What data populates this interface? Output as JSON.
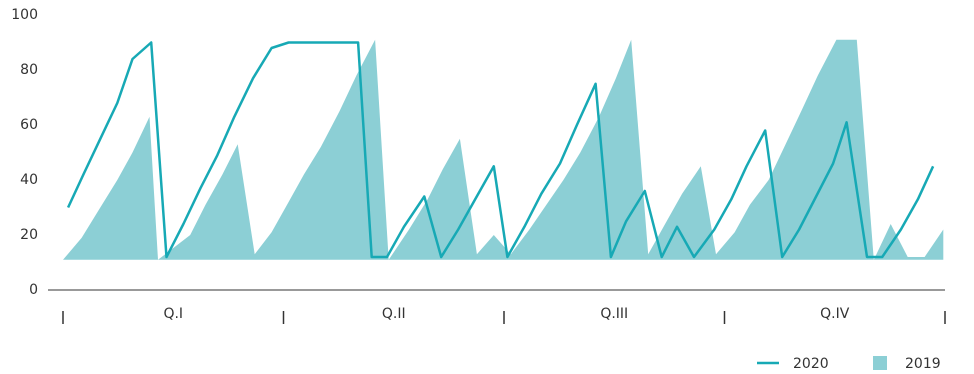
{
  "chart_data": {
    "type": "line-area",
    "quarters": [
      "Q.I",
      "Q.II",
      "Q.III",
      "Q.IV"
    ],
    "xlim": [
      0,
      52
    ],
    "xticks": [
      0,
      13,
      26,
      39,
      52
    ],
    "ylim": [
      0,
      100
    ],
    "yticks": [
      0,
      20,
      40,
      60,
      80,
      100
    ],
    "series": [
      {
        "name": "2020",
        "kind": "line",
        "color": "#17a9b5",
        "x": [
          0.3,
          1.2,
          2.2,
          3.2,
          4.1,
          5.2,
          6.1,
          7.1,
          8.1,
          9.1,
          10.1,
          11.2,
          12.3,
          13.3,
          17.4,
          18.2,
          19.1,
          20.1,
          21.3,
          22.3,
          23.3,
          24.3,
          25.4,
          26.2,
          27.2,
          28.2,
          29.3,
          30.3,
          31.4,
          32.3,
          33.2,
          34.3,
          35.3,
          36.2,
          37.2,
          38.4,
          39.4,
          40.3,
          41.4,
          42.4,
          43.4,
          44.4,
          45.4,
          46.2,
          47.4,
          48.3,
          49.4,
          50.4,
          51.3
        ],
        "values": [
          30,
          42,
          55,
          68,
          84,
          90,
          12,
          24,
          37,
          49,
          63,
          77,
          88,
          90,
          90,
          12,
          12,
          23,
          34,
          12,
          22,
          33,
          45,
          12,
          23,
          35,
          46,
          60,
          75,
          12,
          25,
          36,
          12,
          23,
          12,
          22,
          33,
          45,
          58,
          12,
          22,
          34,
          46,
          61,
          12,
          12,
          22,
          33,
          45
        ]
      },
      {
        "name": "2019",
        "kind": "area",
        "color": "#8ccfd5",
        "x": [
          0,
          1.1,
          2.2,
          3.2,
          4.1,
          5.1,
          5.6,
          7.5,
          8.4,
          9.4,
          10.3,
          11.3,
          12.3,
          13.3,
          14.2,
          15.2,
          16.3,
          17.3,
          18.4,
          19.2,
          20.4,
          21.5,
          22.4,
          23.4,
          24.4,
          25.4,
          26.4,
          27.5,
          28.5,
          29.5,
          30.5,
          31.6,
          32.6,
          33.5,
          34.5,
          35.5,
          36.5,
          37.6,
          38.5,
          39.6,
          40.5,
          41.6,
          42.6,
          43.6,
          44.5,
          45.6,
          46.8,
          47.8,
          48.8,
          49.8,
          50.8,
          51.9
        ],
        "values": [
          11,
          19,
          30,
          40,
          50,
          63,
          11,
          20,
          31,
          42,
          53,
          13,
          21,
          32,
          42,
          52,
          65,
          78,
          91,
          11,
          22,
          33,
          44,
          55,
          13,
          20,
          13,
          22,
          31,
          40,
          50,
          63,
          77,
          91,
          13,
          24,
          35,
          45,
          13,
          21,
          31,
          40,
          53,
          66,
          78,
          91,
          91,
          11,
          24,
          12,
          12,
          22
        ]
      }
    ]
  }
}
